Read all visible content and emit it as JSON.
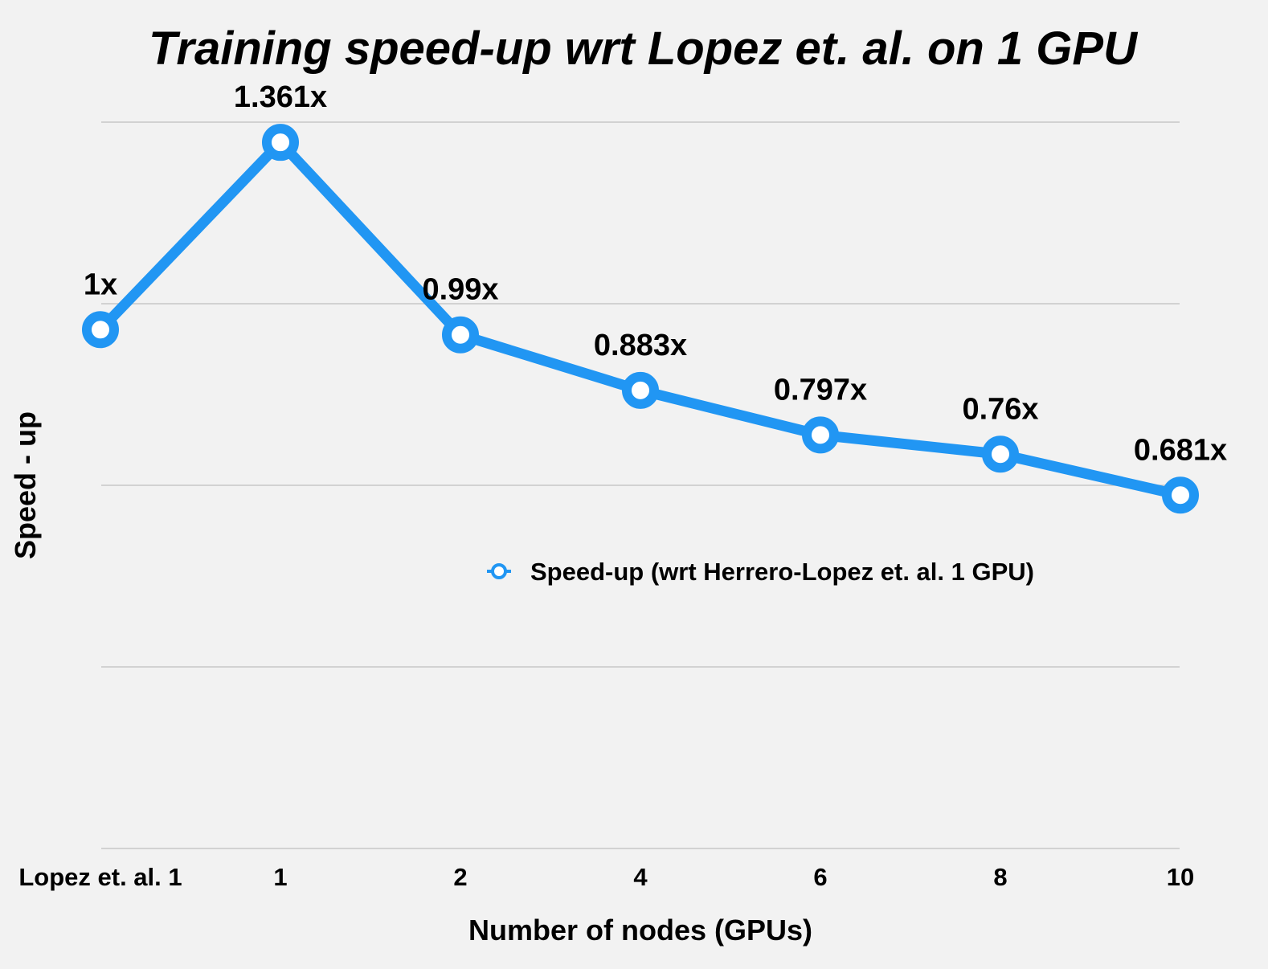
{
  "chart_data": {
    "type": "line",
    "title": "Training speed-up wrt Lopez et. al. on 1 GPU",
    "xlabel": "Number of nodes (GPUs)",
    "ylabel": "Speed - up",
    "categories": [
      "Lopez et. al. 1",
      "1",
      "2",
      "4",
      "6",
      "8",
      "10"
    ],
    "series": [
      {
        "name": "Speed-up (wrt Herrero-Lopez et. al. 1 GPU)",
        "values": [
          1,
          1.361,
          0.99,
          0.883,
          0.797,
          0.76,
          0.681
        ],
        "labels": [
          "1x",
          "1.361x",
          "0.99x",
          "0.883x",
          "0.797x",
          "0.76x",
          "0.681x"
        ]
      }
    ],
    "ylim": [
      0,
      1.4
    ],
    "grid": true,
    "legend_position": "center-right",
    "colors": {
      "series": "#2196f3",
      "marker_fill": "#ffffff",
      "background": "#f2f2f2",
      "grid": "#c8c8c8"
    }
  }
}
